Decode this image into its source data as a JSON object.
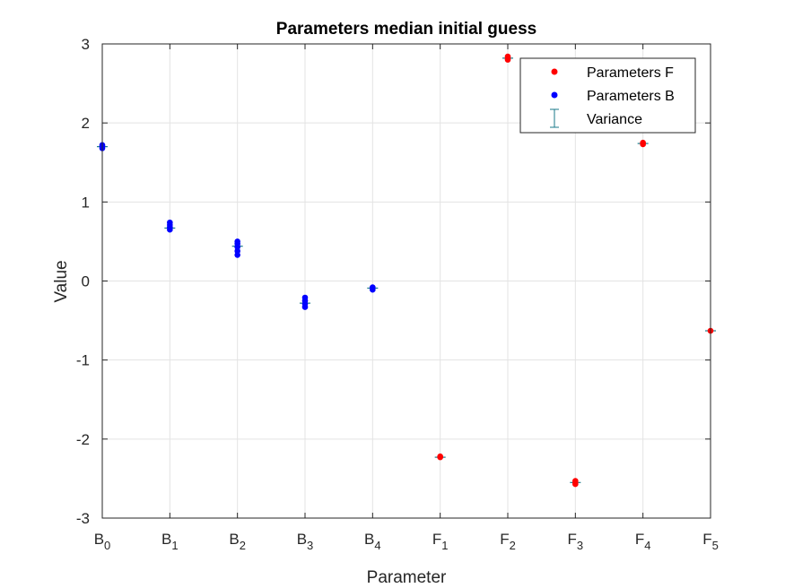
{
  "chart_data": {
    "type": "scatter",
    "title": "Parameters median initial guess",
    "xlabel": "Parameter",
    "ylabel": "Value",
    "ylim": [
      -3,
      3
    ],
    "yticks": [
      "-3",
      "-2",
      "-1",
      "0",
      "1",
      "2",
      "3"
    ],
    "categories": [
      {
        "base": "B",
        "sub": "0"
      },
      {
        "base": "B",
        "sub": "1"
      },
      {
        "base": "B",
        "sub": "2"
      },
      {
        "base": "B",
        "sub": "3"
      },
      {
        "base": "B",
        "sub": "4"
      },
      {
        "base": "F",
        "sub": "1"
      },
      {
        "base": "F",
        "sub": "2"
      },
      {
        "base": "F",
        "sub": "3"
      },
      {
        "base": "F",
        "sub": "4"
      },
      {
        "base": "F",
        "sub": "5"
      }
    ],
    "grid": true,
    "legend_position": "top-right",
    "series": [
      {
        "name": "Parameters F",
        "color": "#ff0000",
        "points": [
          {
            "x": 5,
            "y": -2.23
          },
          {
            "x": 5,
            "y": -2.22
          },
          {
            "x": 6,
            "y": 2.8
          },
          {
            "x": 6,
            "y": 2.82
          },
          {
            "x": 6,
            "y": 2.84
          },
          {
            "x": 7,
            "y": -2.57
          },
          {
            "x": 7,
            "y": -2.55
          },
          {
            "x": 7,
            "y": -2.53
          },
          {
            "x": 8,
            "y": 1.73
          },
          {
            "x": 8,
            "y": 1.75
          },
          {
            "x": 9,
            "y": -0.63
          }
        ]
      },
      {
        "name": "Parameters B",
        "color": "#0000ff",
        "points": [
          {
            "x": 0,
            "y": 1.68
          },
          {
            "x": 0,
            "y": 1.7
          },
          {
            "x": 0,
            "y": 1.72
          },
          {
            "x": 1,
            "y": 0.65
          },
          {
            "x": 1,
            "y": 0.68
          },
          {
            "x": 1,
            "y": 0.71
          },
          {
            "x": 1,
            "y": 0.74
          },
          {
            "x": 2,
            "y": 0.33
          },
          {
            "x": 2,
            "y": 0.38
          },
          {
            "x": 2,
            "y": 0.43
          },
          {
            "x": 2,
            "y": 0.47
          },
          {
            "x": 2,
            "y": 0.5
          },
          {
            "x": 3,
            "y": -0.33
          },
          {
            "x": 3,
            "y": -0.29
          },
          {
            "x": 3,
            "y": -0.25
          },
          {
            "x": 3,
            "y": -0.21
          },
          {
            "x": 4,
            "y": -0.11
          },
          {
            "x": 4,
            "y": -0.08
          }
        ]
      }
    ],
    "variance": {
      "name": "Variance",
      "color": "#1a7a8a",
      "medians": [
        {
          "x": 0,
          "y": 1.7
        },
        {
          "x": 1,
          "y": 0.67
        },
        {
          "x": 2,
          "y": 0.44
        },
        {
          "x": 3,
          "y": -0.28
        },
        {
          "x": 4,
          "y": -0.09
        },
        {
          "x": 5,
          "y": -2.23
        },
        {
          "x": 6,
          "y": 2.82
        },
        {
          "x": 7,
          "y": -2.55
        },
        {
          "x": 8,
          "y": 1.74
        },
        {
          "x": 9,
          "y": -0.63
        }
      ]
    }
  }
}
